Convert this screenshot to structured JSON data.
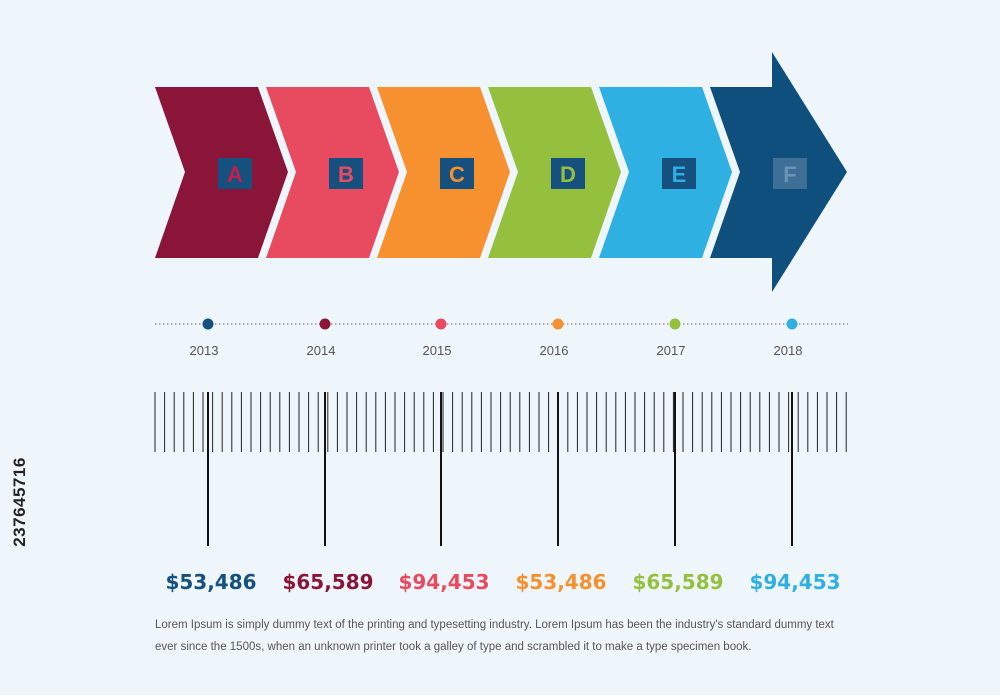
{
  "stages": [
    {
      "letter": "A",
      "color": "#8a1538",
      "box_color": "#15507f",
      "letter_color": "#c41e4a"
    },
    {
      "letter": "B",
      "color": "#e84a5f",
      "box_color": "#15507f",
      "letter_color": "#e84a5f"
    },
    {
      "letter": "C",
      "color": "#f7902e",
      "box_color": "#15507f",
      "letter_color": "#f7902e"
    },
    {
      "letter": "D",
      "color": "#95c03e",
      "box_color": "#15507f",
      "letter_color": "#95c03e"
    },
    {
      "letter": "E",
      "color": "#2fb0e2",
      "box_color": "#15507f",
      "letter_color": "#2fb0e2"
    },
    {
      "letter": "F",
      "color": "#0f4f7d",
      "box_color": "#3d6f97",
      "letter_color": "#6b93b5"
    }
  ],
  "timeline": [
    {
      "year": "2013",
      "dot_color": "#15507f"
    },
    {
      "year": "2014",
      "dot_color": "#8a1538"
    },
    {
      "year": "2015",
      "dot_color": "#e84a5f"
    },
    {
      "year": "2016",
      "dot_color": "#f7902e"
    },
    {
      "year": "2017",
      "dot_color": "#95c03e"
    },
    {
      "year": "2018",
      "dot_color": "#2fb0e2"
    }
  ],
  "values": [
    {
      "text": "$53,486",
      "color": "#15507f"
    },
    {
      "text": "$65,589",
      "color": "#8a1538"
    },
    {
      "text": "$94,453",
      "color": "#e84a5f"
    },
    {
      "text": "$53,486",
      "color": "#f7902e"
    },
    {
      "text": "$65,589",
      "color": "#95c03e"
    },
    {
      "text": "$94,453",
      "color": "#2fb0e2"
    }
  ],
  "description": "Lorem Ipsum is simply dummy text of the printing and typesetting industry. Lorem Ipsum has been the industry's standard dummy text ever since the 1500s, when an unknown printer took a galley of type and scrambled it to make a type specimen book.",
  "stock_id": "237645716"
}
